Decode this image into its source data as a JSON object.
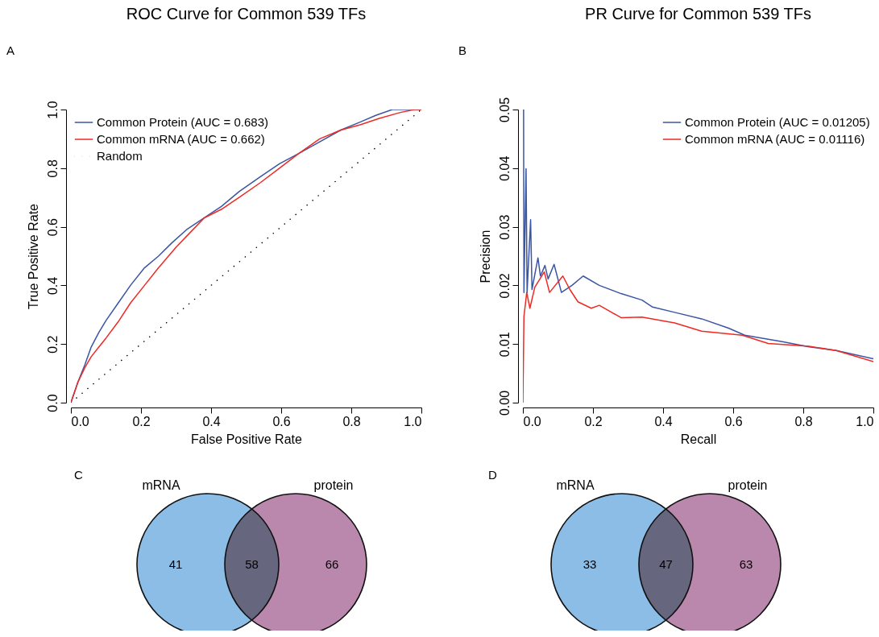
{
  "chart_data": [
    {
      "type": "line",
      "title": "ROC Curve for Common 539 TFs",
      "xlabel": "False Positive Rate",
      "ylabel": "True Positive Rate",
      "annotations": [
        "A"
      ],
      "xlim": [
        0,
        1
      ],
      "ylim": [
        0,
        1
      ],
      "xticks": [
        {
          "value": 0,
          "label": "0.0"
        },
        {
          "value": 0.2,
          "label": "0.2"
        },
        {
          "value": 0.4,
          "label": "0.4"
        },
        {
          "value": 0.6,
          "label": "0.6"
        },
        {
          "value": 0.8,
          "label": "0.8"
        },
        {
          "value": 1,
          "label": "1.0"
        }
      ],
      "yticks": [
        {
          "value": 0,
          "label": "0.0"
        },
        {
          "value": 0.2,
          "label": "0.2"
        },
        {
          "value": 0.4,
          "label": "0.4"
        },
        {
          "value": 0.6,
          "label": "0.6"
        },
        {
          "value": 0.8,
          "label": "0.8"
        },
        {
          "value": 1,
          "label": "1.0"
        }
      ],
      "legend": "top left",
      "series": [
        {
          "name": "Common Protein (AUC = 0.683)",
          "color": "#3a55a4",
          "line_style": "solid",
          "x": [
            0,
            0.02,
            0.04,
            0.058,
            0.08,
            0.1,
            0.135,
            0.17,
            0.21,
            0.25,
            0.288,
            0.33,
            0.38,
            0.43,
            0.48,
            0.54,
            0.595,
            0.65,
            0.71,
            0.77,
            0.825,
            0.87,
            0.917,
            0.96,
            1
          ],
          "values": [
            0,
            0.07,
            0.13,
            0.19,
            0.24,
            0.28,
            0.34,
            0.4,
            0.46,
            0.5,
            0.545,
            0.59,
            0.63,
            0.67,
            0.72,
            0.77,
            0.815,
            0.85,
            0.89,
            0.93,
            0.957,
            0.98,
            1.0,
            1.0,
            1.0
          ]
        },
        {
          "name": "Common mRNA (AUC = 0.662)",
          "color": "#ee2a24",
          "line_style": "solid",
          "x": [
            0,
            0.02,
            0.04,
            0.058,
            0.08,
            0.1,
            0.135,
            0.17,
            0.21,
            0.25,
            0.3,
            0.34,
            0.38,
            0.43,
            0.48,
            0.54,
            0.595,
            0.65,
            0.71,
            0.77,
            0.825,
            0.88,
            0.94,
            0.98,
            1
          ],
          "values": [
            0,
            0.07,
            0.12,
            0.157,
            0.19,
            0.22,
            0.276,
            0.34,
            0.4,
            0.46,
            0.53,
            0.58,
            0.63,
            0.66,
            0.7,
            0.75,
            0.8,
            0.85,
            0.9,
            0.93,
            0.948,
            0.97,
            0.99,
            1.0,
            1.0
          ]
        },
        {
          "name": "Random",
          "color": "#000000",
          "line_style": "dotted",
          "x": [
            0,
            1
          ],
          "values": [
            0,
            1
          ]
        }
      ]
    },
    {
      "type": "line",
      "title": "PR Curve for Common 539 TFs",
      "xlabel": "Recall",
      "ylabel": "Precision",
      "annotations": [
        "B"
      ],
      "xlim": [
        0,
        1
      ],
      "ylim": [
        0,
        0.05
      ],
      "xticks": [
        {
          "value": 0,
          "label": "0.0"
        },
        {
          "value": 0.2,
          "label": "0.2"
        },
        {
          "value": 0.4,
          "label": "0.4"
        },
        {
          "value": 0.6,
          "label": "0.6"
        },
        {
          "value": 0.8,
          "label": "0.8"
        },
        {
          "value": 1,
          "label": "1.0"
        }
      ],
      "yticks": [
        {
          "value": 0,
          "label": "0.00"
        },
        {
          "value": 0.01,
          "label": "0.01"
        },
        {
          "value": 0.02,
          "label": "0.02"
        },
        {
          "value": 0.03,
          "label": "0.03"
        },
        {
          "value": 0.04,
          "label": "0.04"
        },
        {
          "value": 0.05,
          "label": "0.05"
        }
      ],
      "legend": "top right",
      "series": [
        {
          "name": "Common Protein (AUC = 0.01205)",
          "color": "#3a55a4",
          "line_style": "solid",
          "x": [
            0.002,
            0.003,
            0.009,
            0.012,
            0.022,
            0.026,
            0.043,
            0.05,
            0.063,
            0.072,
            0.089,
            0.11,
            0.14,
            0.172,
            0.218,
            0.28,
            0.34,
            0.37,
            0.433,
            0.51,
            0.587,
            0.633,
            0.74,
            0.817,
            0.894,
            1.0
          ],
          "values": [
            0.05,
            0.0188,
            0.0399,
            0.0188,
            0.0312,
            0.0193,
            0.0247,
            0.0216,
            0.0234,
            0.0211,
            0.0236,
            0.0188,
            0.02,
            0.0216,
            0.02,
            0.0186,
            0.0175,
            0.0163,
            0.0154,
            0.0143,
            0.0127,
            0.0115,
            0.0104,
            0.0095,
            0.0089,
            0.0075
          ]
        },
        {
          "name": "Common mRNA (AUC = 0.01116)",
          "color": "#ee2a24",
          "line_style": "solid",
          "x": [
            0,
            0.003,
            0.011,
            0.02,
            0.034,
            0.061,
            0.076,
            0.114,
            0.134,
            0.157,
            0.195,
            0.218,
            0.28,
            0.34,
            0.433,
            0.51,
            0.626,
            0.7,
            0.817,
            0.894,
            1.0
          ],
          "values": [
            0,
            0.0147,
            0.0188,
            0.0161,
            0.0197,
            0.0223,
            0.0188,
            0.0216,
            0.0193,
            0.0172,
            0.0161,
            0.0166,
            0.0145,
            0.0146,
            0.0136,
            0.0122,
            0.0115,
            0.0101,
            0.0096,
            0.0089,
            0.007
          ]
        }
      ]
    },
    {
      "type": "other",
      "annotations": [
        "C"
      ],
      "data_labels": true,
      "categories": [
        "mRNA",
        null,
        "protein"
      ],
      "values": [
        41,
        58,
        66
      ],
      "colors": [
        "#8bbde6",
        "#66667e",
        "#bb88ad"
      ]
    },
    {
      "type": "other",
      "annotations": [
        "D"
      ],
      "data_labels": true,
      "categories": [
        "mRNA",
        null,
        "protein"
      ],
      "values": [
        33,
        47,
        63
      ],
      "colors": [
        "#8bbde6",
        "#66667e",
        "#bb88ad"
      ]
    }
  ]
}
